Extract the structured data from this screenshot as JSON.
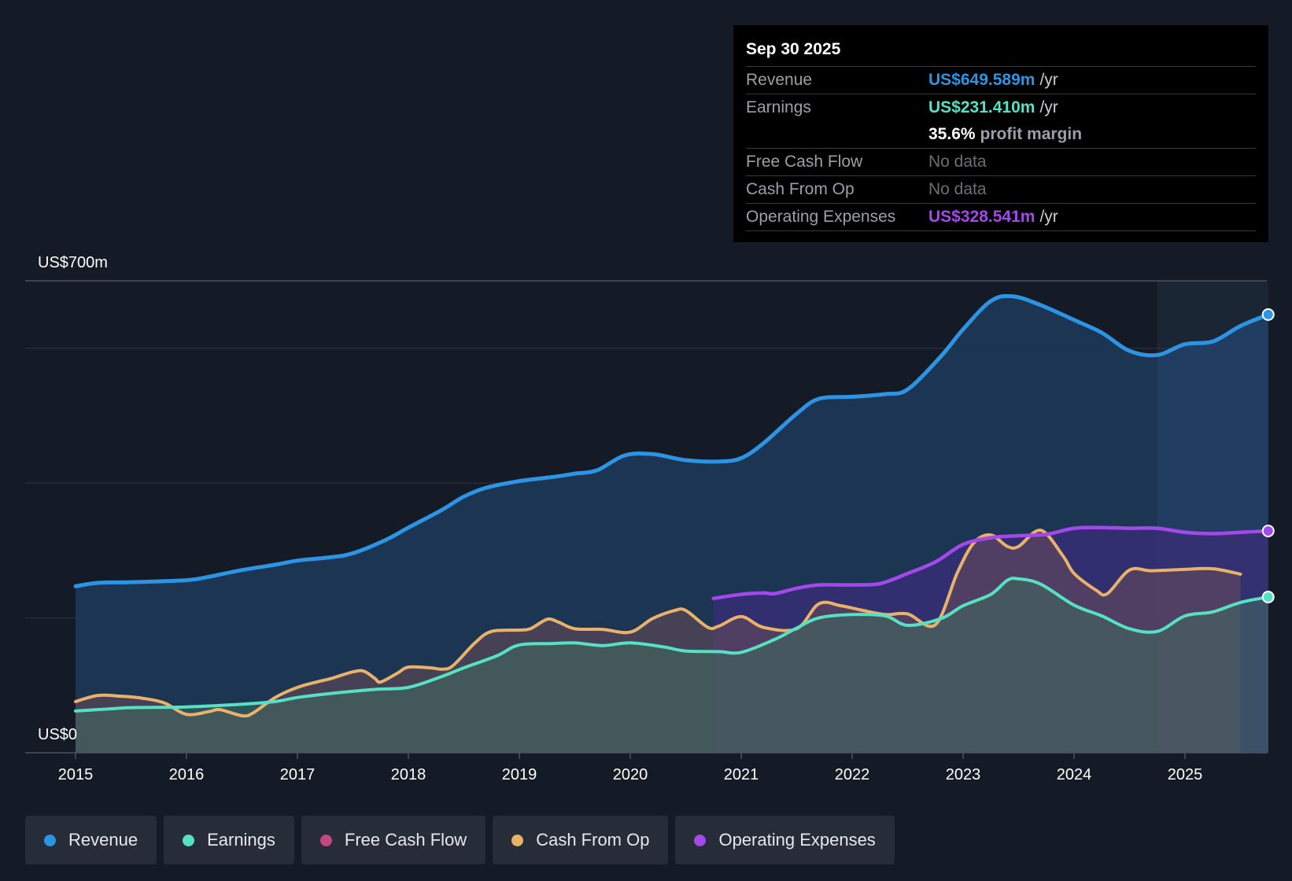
{
  "chart_data": {
    "type": "area",
    "y_axis": {
      "top_label": "US$700m",
      "bottom_label": "US$0",
      "ylim": [
        0,
        700
      ]
    },
    "x_labels": [
      "2015",
      "2016",
      "2017",
      "2018",
      "2019",
      "2020",
      "2021",
      "2022",
      "2023",
      "2024",
      "2025"
    ],
    "series": [
      {
        "name": "Revenue",
        "color": "#2d94e3",
        "points": [
          [
            2015.0,
            247
          ],
          [
            2015.2,
            252
          ],
          [
            2015.5,
            253
          ],
          [
            2016.0,
            256
          ],
          [
            2016.2,
            261
          ],
          [
            2016.5,
            271
          ],
          [
            2016.8,
            279
          ],
          [
            2017.0,
            285
          ],
          [
            2017.3,
            290
          ],
          [
            2017.5,
            296
          ],
          [
            2017.8,
            316
          ],
          [
            2018.0,
            334
          ],
          [
            2018.3,
            360
          ],
          [
            2018.5,
            380
          ],
          [
            2018.7,
            393
          ],
          [
            2019.0,
            403
          ],
          [
            2019.3,
            409
          ],
          [
            2019.5,
            414
          ],
          [
            2019.7,
            419
          ],
          [
            2019.95,
            441
          ],
          [
            2020.2,
            443
          ],
          [
            2020.5,
            434
          ],
          [
            2020.8,
            432
          ],
          [
            2021.0,
            437
          ],
          [
            2021.2,
            459
          ],
          [
            2021.5,
            503
          ],
          [
            2021.7,
            525
          ],
          [
            2022.0,
            528
          ],
          [
            2022.3,
            532
          ],
          [
            2022.5,
            539
          ],
          [
            2022.8,
            588
          ],
          [
            2023.0,
            628
          ],
          [
            2023.25,
            670
          ],
          [
            2023.45,
            677
          ],
          [
            2023.7,
            664
          ],
          [
            2024.0,
            642
          ],
          [
            2024.25,
            623
          ],
          [
            2024.5,
            596
          ],
          [
            2024.75,
            590
          ],
          [
            2025.0,
            606
          ],
          [
            2025.25,
            610
          ],
          [
            2025.5,
            633
          ],
          [
            2025.75,
            650
          ]
        ]
      },
      {
        "name": "Earnings",
        "color": "#57e1c4",
        "points": [
          [
            2015.0,
            62
          ],
          [
            2015.3,
            65
          ],
          [
            2015.5,
            67
          ],
          [
            2016.0,
            68
          ],
          [
            2016.5,
            72
          ],
          [
            2016.8,
            76
          ],
          [
            2017.0,
            82
          ],
          [
            2017.3,
            88
          ],
          [
            2017.7,
            94
          ],
          [
            2018.0,
            97
          ],
          [
            2018.3,
            113
          ],
          [
            2018.5,
            126
          ],
          [
            2018.8,
            144
          ],
          [
            2019.0,
            160
          ],
          [
            2019.3,
            162
          ],
          [
            2019.5,
            163
          ],
          [
            2019.75,
            159
          ],
          [
            2020.0,
            163
          ],
          [
            2020.3,
            157
          ],
          [
            2020.5,
            151
          ],
          [
            2020.8,
            150
          ],
          [
            2021.0,
            149
          ],
          [
            2021.3,
            168
          ],
          [
            2021.5,
            185
          ],
          [
            2021.7,
            200
          ],
          [
            2022.0,
            205
          ],
          [
            2022.3,
            203
          ],
          [
            2022.5,
            189
          ],
          [
            2022.8,
            199
          ],
          [
            2023.0,
            218
          ],
          [
            2023.25,
            235
          ],
          [
            2023.4,
            256
          ],
          [
            2023.5,
            258
          ],
          [
            2023.7,
            250
          ],
          [
            2024.0,
            219
          ],
          [
            2024.25,
            203
          ],
          [
            2024.5,
            184
          ],
          [
            2024.75,
            180
          ],
          [
            2025.0,
            203
          ],
          [
            2025.25,
            209
          ],
          [
            2025.5,
            223
          ],
          [
            2025.75,
            231
          ]
        ]
      },
      {
        "name": "Cash From Op",
        "color": "#e9b26a",
        "points": [
          [
            2015.0,
            76
          ],
          [
            2015.2,
            85
          ],
          [
            2015.4,
            84
          ],
          [
            2015.6,
            81
          ],
          [
            2015.8,
            74
          ],
          [
            2016.0,
            57
          ],
          [
            2016.2,
            61
          ],
          [
            2016.3,
            64
          ],
          [
            2016.5,
            55
          ],
          [
            2016.6,
            59
          ],
          [
            2016.8,
            82
          ],
          [
            2017.0,
            97
          ],
          [
            2017.2,
            106
          ],
          [
            2017.3,
            110
          ],
          [
            2017.5,
            120
          ],
          [
            2017.6,
            121
          ],
          [
            2017.7,
            110
          ],
          [
            2017.75,
            105
          ],
          [
            2017.9,
            118
          ],
          [
            2018.0,
            127
          ],
          [
            2018.2,
            126
          ],
          [
            2018.3,
            124
          ],
          [
            2018.4,
            129
          ],
          [
            2018.6,
            163
          ],
          [
            2018.75,
            180
          ],
          [
            2019.0,
            182
          ],
          [
            2019.1,
            184
          ],
          [
            2019.25,
            198
          ],
          [
            2019.35,
            194
          ],
          [
            2019.5,
            184
          ],
          [
            2019.75,
            183
          ],
          [
            2020.0,
            179
          ],
          [
            2020.2,
            199
          ],
          [
            2020.4,
            211
          ],
          [
            2020.5,
            211
          ],
          [
            2020.7,
            186
          ],
          [
            2020.8,
            188
          ],
          [
            2021.0,
            202
          ],
          [
            2021.2,
            186
          ],
          [
            2021.5,
            184
          ],
          [
            2021.7,
            221
          ],
          [
            2021.9,
            218
          ],
          [
            2022.1,
            211
          ],
          [
            2022.3,
            205
          ],
          [
            2022.5,
            206
          ],
          [
            2022.75,
            190
          ],
          [
            2022.95,
            268
          ],
          [
            2023.1,
            312
          ],
          [
            2023.25,
            323
          ],
          [
            2023.4,
            306
          ],
          [
            2023.5,
            306
          ],
          [
            2023.7,
            330
          ],
          [
            2023.9,
            292
          ],
          [
            2024.0,
            266
          ],
          [
            2024.2,
            241
          ],
          [
            2024.3,
            236
          ],
          [
            2024.5,
            271
          ],
          [
            2024.7,
            270
          ],
          [
            2025.0,
            272
          ],
          [
            2025.25,
            273
          ],
          [
            2025.5,
            265
          ]
        ]
      },
      {
        "name": "Operating Expenses",
        "color": "#a348ea",
        "points": [
          [
            2020.75,
            229
          ],
          [
            2021.0,
            235
          ],
          [
            2021.2,
            237
          ],
          [
            2021.3,
            236
          ],
          [
            2021.5,
            244
          ],
          [
            2021.7,
            249
          ],
          [
            2022.0,
            249
          ],
          [
            2022.25,
            251
          ],
          [
            2022.5,
            266
          ],
          [
            2022.75,
            283
          ],
          [
            2023.0,
            309
          ],
          [
            2023.25,
            319
          ],
          [
            2023.5,
            322
          ],
          [
            2023.75,
            324
          ],
          [
            2024.0,
            333
          ],
          [
            2024.25,
            334
          ],
          [
            2024.5,
            333
          ],
          [
            2024.75,
            333
          ],
          [
            2025.0,
            327
          ],
          [
            2025.25,
            325
          ],
          [
            2025.5,
            327
          ],
          [
            2025.75,
            329
          ]
        ]
      }
    ],
    "legend": [
      {
        "name": "Revenue",
        "color": "#2d94e3"
      },
      {
        "name": "Earnings",
        "color": "#57e1c4"
      },
      {
        "name": "Free Cash Flow",
        "color": "#c4467f"
      },
      {
        "name": "Cash From Op",
        "color": "#e9b26a"
      },
      {
        "name": "Operating Expenses",
        "color": "#a348ea"
      }
    ]
  },
  "tooltip": {
    "date": "Sep 30 2025",
    "unit": "/yr",
    "revenue_label": "Revenue",
    "revenue_value": "US$649.589m",
    "earnings_label": "Earnings",
    "earnings_value": "US$231.410m",
    "margin_value": "35.6%",
    "margin_text": "profit margin",
    "fcf_label": "Free Cash Flow",
    "fcf_value": "No data",
    "cfo_label": "Cash From Op",
    "cfo_value": "No data",
    "opex_label": "Operating Expenses",
    "opex_value": "US$328.541m"
  },
  "colors": {
    "revenue": "#2d94e3",
    "earnings": "#57e1c4",
    "opex": "#a348ea",
    "fcf": "#c4467f",
    "cfo": "#e9b26a"
  }
}
